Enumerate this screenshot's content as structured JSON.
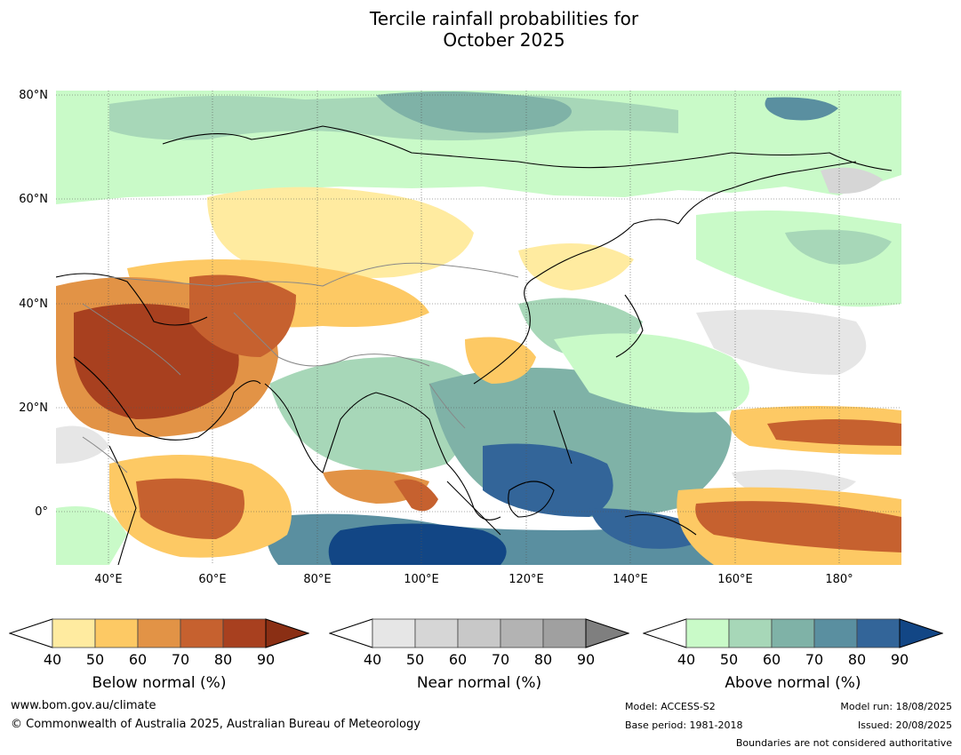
{
  "title_line1": "Tercile rainfall probabilities for",
  "title_line2": "October 2025",
  "map": {
    "lon_range": [
      30,
      192
    ],
    "lat_range": [
      -10,
      81
    ],
    "lat_labels": [
      "80°N",
      "60°N",
      "40°N",
      "20°N",
      "0°"
    ],
    "lon_labels": [
      "40°E",
      "60°E",
      "80°E",
      "100°E",
      "120°E",
      "140°E",
      "160°E",
      "180°"
    ],
    "gridlines": true,
    "colors": {
      "ocean_neutral": "#ffffff",
      "coast": "#000000",
      "boundary": "#888888"
    }
  },
  "colorbars": [
    {
      "title": "Below normal (%)",
      "ticks": [
        "40",
        "50",
        "60",
        "70",
        "80",
        "90"
      ],
      "colors": [
        "#ffeba0",
        "#fdc964",
        "#e29346",
        "#c6612f",
        "#a8401f",
        "#8a2f14"
      ]
    },
    {
      "title": "Near normal (%)",
      "ticks": [
        "40",
        "50",
        "60",
        "70",
        "80",
        "90"
      ],
      "colors": [
        "#e6e6e6",
        "#d6d6d6",
        "#c8c8c8",
        "#b3b3b3",
        "#a0a0a0",
        "#7f7f7f"
      ]
    },
    {
      "title": "Above normal (%)",
      "ticks": [
        "40",
        "50",
        "60",
        "70",
        "80",
        "90"
      ],
      "colors": [
        "#c9fac8",
        "#a7d7b8",
        "#7fb2a7",
        "#5a8fa0",
        "#336599",
        "#124685"
      ]
    }
  ],
  "footer": {
    "website": "www.bom.gov.au/climate",
    "copyright": "© Commonwealth of Australia 2025, Australian Bureau of Meteorology",
    "model": "Model: ACCESS-S2",
    "base_period": "Base period: 1981-2018",
    "model_run": "Model run: 18/08/2025",
    "issued": "Issued: 20/08/2025",
    "boundaries": "Boundaries are not considered authoritative"
  }
}
